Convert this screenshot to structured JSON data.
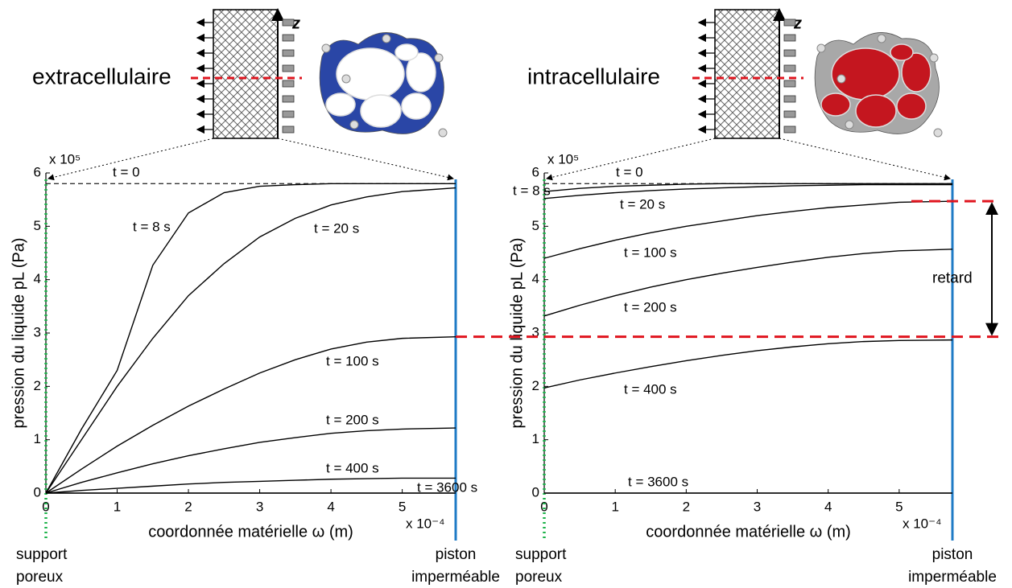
{
  "chart_data": [
    {
      "type": "line",
      "title": "extracellulaire",
      "title_color": "#1f3b8f",
      "schematic_axis": "z",
      "xlabel": "coordonnée matérielle ω (m)",
      "ylabel": "pression du liquide pL (Pa)",
      "x_multiplier": "x 10⁻⁴",
      "y_multiplier": "x 10⁵",
      "left_note": [
        "support",
        "poreux"
      ],
      "right_note": [
        "piston",
        "imperméable"
      ],
      "xlim": [
        0,
        5.75
      ],
      "ylim": [
        0,
        6
      ],
      "xticks": [
        0,
        1,
        2,
        3,
        4,
        5
      ],
      "yticks": [
        0,
        1,
        2,
        3,
        4,
        5,
        6
      ],
      "x": [
        0,
        0.5,
        1,
        1.5,
        2,
        2.5,
        3,
        3.5,
        4,
        4.5,
        5,
        5.75
      ],
      "series": [
        {
          "name": "t = 0",
          "color": "#333333",
          "dashed": true,
          "values": [
            5.8,
            5.8,
            5.8,
            5.8,
            5.8,
            5.8,
            5.8,
            5.8,
            5.8,
            5.8,
            5.8,
            5.8
          ]
        },
        {
          "name": "t = 8 s",
          "color": "#000000",
          "values": [
            0,
            1.2,
            2.3,
            4.27,
            5.25,
            5.63,
            5.75,
            5.78,
            5.8,
            5.8,
            5.8,
            5.8
          ]
        },
        {
          "name": "t = 20 s",
          "color": "#000000",
          "values": [
            0,
            1.0,
            2.0,
            2.9,
            3.7,
            4.3,
            4.8,
            5.15,
            5.4,
            5.55,
            5.65,
            5.72
          ]
        },
        {
          "name": "t = 100 s",
          "color": "#000000",
          "values": [
            0,
            0.45,
            0.88,
            1.27,
            1.63,
            1.95,
            2.25,
            2.5,
            2.7,
            2.83,
            2.9,
            2.93
          ]
        },
        {
          "name": "t = 200 s",
          "color": "#000000",
          "values": [
            0,
            0.2,
            0.38,
            0.55,
            0.7,
            0.83,
            0.95,
            1.04,
            1.12,
            1.17,
            1.2,
            1.22
          ]
        },
        {
          "name": "t = 400 s",
          "color": "#000000",
          "values": [
            0,
            0.05,
            0.09,
            0.13,
            0.17,
            0.2,
            0.22,
            0.24,
            0.26,
            0.27,
            0.28,
            0.28
          ]
        },
        {
          "name": "t = 3600 s",
          "color": "#000000",
          "values": [
            0,
            0,
            0,
            0,
            0,
            0,
            0,
            0,
            0,
            0,
            0,
            0
          ]
        }
      ]
    },
    {
      "type": "line",
      "title": "intracellulaire",
      "title_color": "#d0121b",
      "schematic_axis": "z",
      "xlabel": "coordonnée matérielle ω (m)",
      "ylabel": "pression du liquide pL (Pa)",
      "x_multiplier": "x 10⁻⁴",
      "y_multiplier": "x 10⁵",
      "annotation": "retard",
      "left_note": [
        "support",
        "poreux"
      ],
      "right_note": [
        "piston",
        "imperméable"
      ],
      "xlim": [
        0,
        5.75
      ],
      "ylim": [
        0,
        6
      ],
      "xticks": [
        0,
        1,
        2,
        3,
        4,
        5
      ],
      "yticks": [
        0,
        1,
        2,
        3,
        4,
        5,
        6
      ],
      "x": [
        0,
        0.5,
        1,
        1.5,
        2,
        2.5,
        3,
        3.5,
        4,
        4.5,
        5,
        5.75
      ],
      "series": [
        {
          "name": "t = 0",
          "color": "#333333",
          "dashed": true,
          "values": [
            5.8,
            5.8,
            5.8,
            5.8,
            5.8,
            5.8,
            5.8,
            5.8,
            5.8,
            5.8,
            5.8,
            5.8
          ]
        },
        {
          "name": "t = 8 s",
          "color": "#000000",
          "values": [
            5.65,
            5.71,
            5.75,
            5.77,
            5.79,
            5.8,
            5.8,
            5.8,
            5.8,
            5.8,
            5.8,
            5.8
          ]
        },
        {
          "name": "t = 20 s",
          "color": "#000000",
          "values": [
            5.52,
            5.58,
            5.63,
            5.67,
            5.7,
            5.72,
            5.74,
            5.76,
            5.77,
            5.78,
            5.78,
            5.78
          ]
        },
        {
          "name": "t = 100 s",
          "color": "#000000",
          "values": [
            4.4,
            4.58,
            4.74,
            4.88,
            5.0,
            5.1,
            5.2,
            5.28,
            5.35,
            5.4,
            5.45,
            5.47
          ]
        },
        {
          "name": "t = 200 s",
          "color": "#000000",
          "values": [
            3.32,
            3.52,
            3.7,
            3.86,
            4.0,
            4.12,
            4.23,
            4.33,
            4.42,
            4.49,
            4.54,
            4.57
          ]
        },
        {
          "name": "t = 400 s",
          "color": "#000000",
          "values": [
            1.97,
            2.12,
            2.25,
            2.37,
            2.48,
            2.58,
            2.67,
            2.74,
            2.8,
            2.84,
            2.86,
            2.87
          ]
        },
        {
          "name": "t = 3600 s",
          "color": "#000000",
          "values": [
            0,
            0,
            0,
            0,
            0,
            0,
            0,
            0,
            0,
            0,
            0,
            0
          ]
        }
      ]
    }
  ]
}
